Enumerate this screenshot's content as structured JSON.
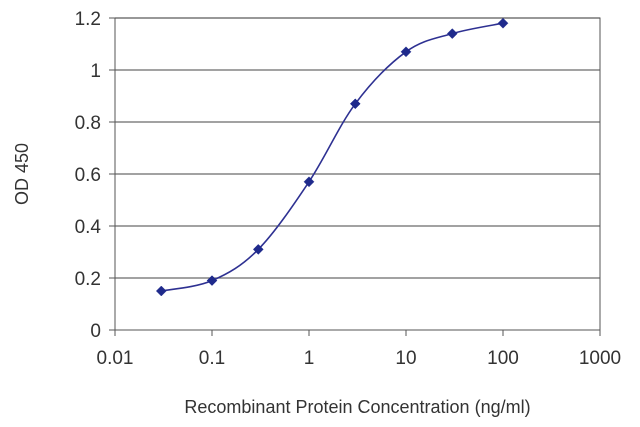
{
  "chart_data": {
    "type": "line",
    "title": "",
    "xlabel": "Recombinant Protein Concentration (ng/ml)",
    "ylabel": "OD 450",
    "x_scale": "log",
    "xlim": [
      0.01,
      1000
    ],
    "ylim": [
      0,
      1.2
    ],
    "x_ticks": [
      "0.01",
      "0.1",
      "1",
      "10",
      "100",
      "1000"
    ],
    "y_ticks": [
      "0",
      "0.2",
      "0.4",
      "0.6",
      "0.8",
      "1",
      "1.2"
    ],
    "grid": "horizontal",
    "legend": "none",
    "series": [
      {
        "x": [
          0.03,
          0.1,
          0.3,
          1,
          3,
          10,
          30,
          100
        ],
        "y": [
          0.15,
          0.19,
          0.31,
          0.57,
          0.87,
          1.07,
          1.14,
          1.18
        ]
      }
    ],
    "colors": {
      "series": "#2e3192",
      "marker": "#1f2a8c",
      "grid": "#6b6b6b",
      "axis": "#555555",
      "text": "#333333"
    }
  }
}
